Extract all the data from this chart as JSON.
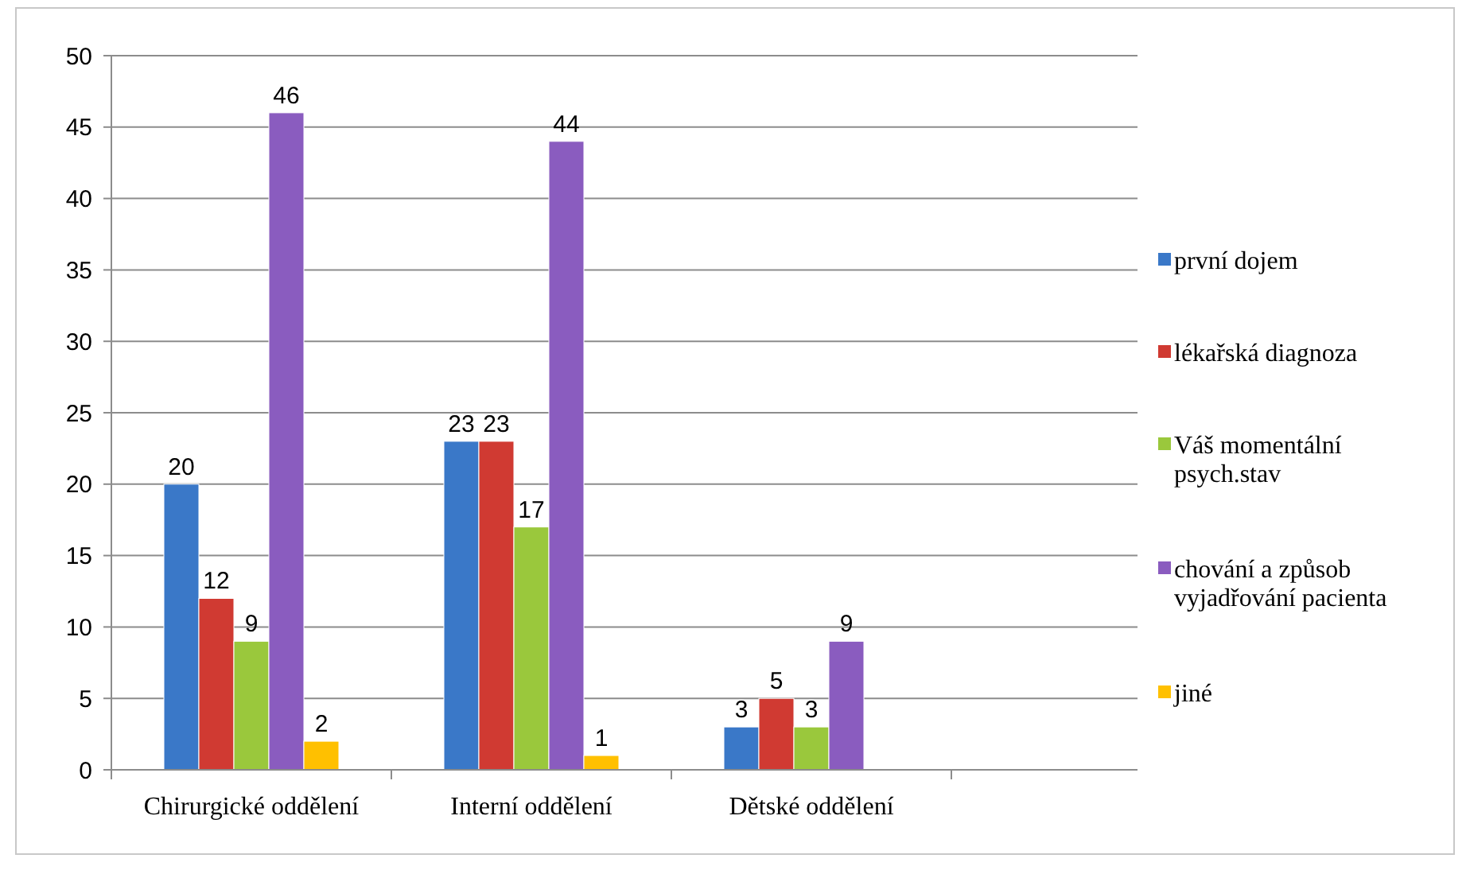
{
  "chart_data": {
    "type": "bar",
    "categories": [
      "Chirurgické oddělení",
      "Interní oddělení",
      "Dětské oddělení"
    ],
    "series": [
      {
        "name": "první dojem",
        "color": "#3a78c8",
        "values": [
          20,
          23,
          3
        ]
      },
      {
        "name": "lékařská diagnoza",
        "color": "#d03a32",
        "values": [
          12,
          23,
          5
        ]
      },
      {
        "name": "Váš momentální psych.stav",
        "color": "#9ac83c",
        "values": [
          9,
          17,
          3
        ]
      },
      {
        "name": "chování a způsob vyjadřování pacienta",
        "color": "#8a5cbf",
        "values": [
          46,
          44,
          9
        ]
      },
      {
        "name": "jiné",
        "color": "#ffc000",
        "values": [
          2,
          1,
          null
        ]
      }
    ],
    "ylim": [
      0,
      50
    ],
    "yticks": [
      0,
      5,
      10,
      15,
      20,
      25,
      30,
      35,
      40,
      45,
      50
    ],
    "grid": "y",
    "legend": "right",
    "data_labels": true
  }
}
